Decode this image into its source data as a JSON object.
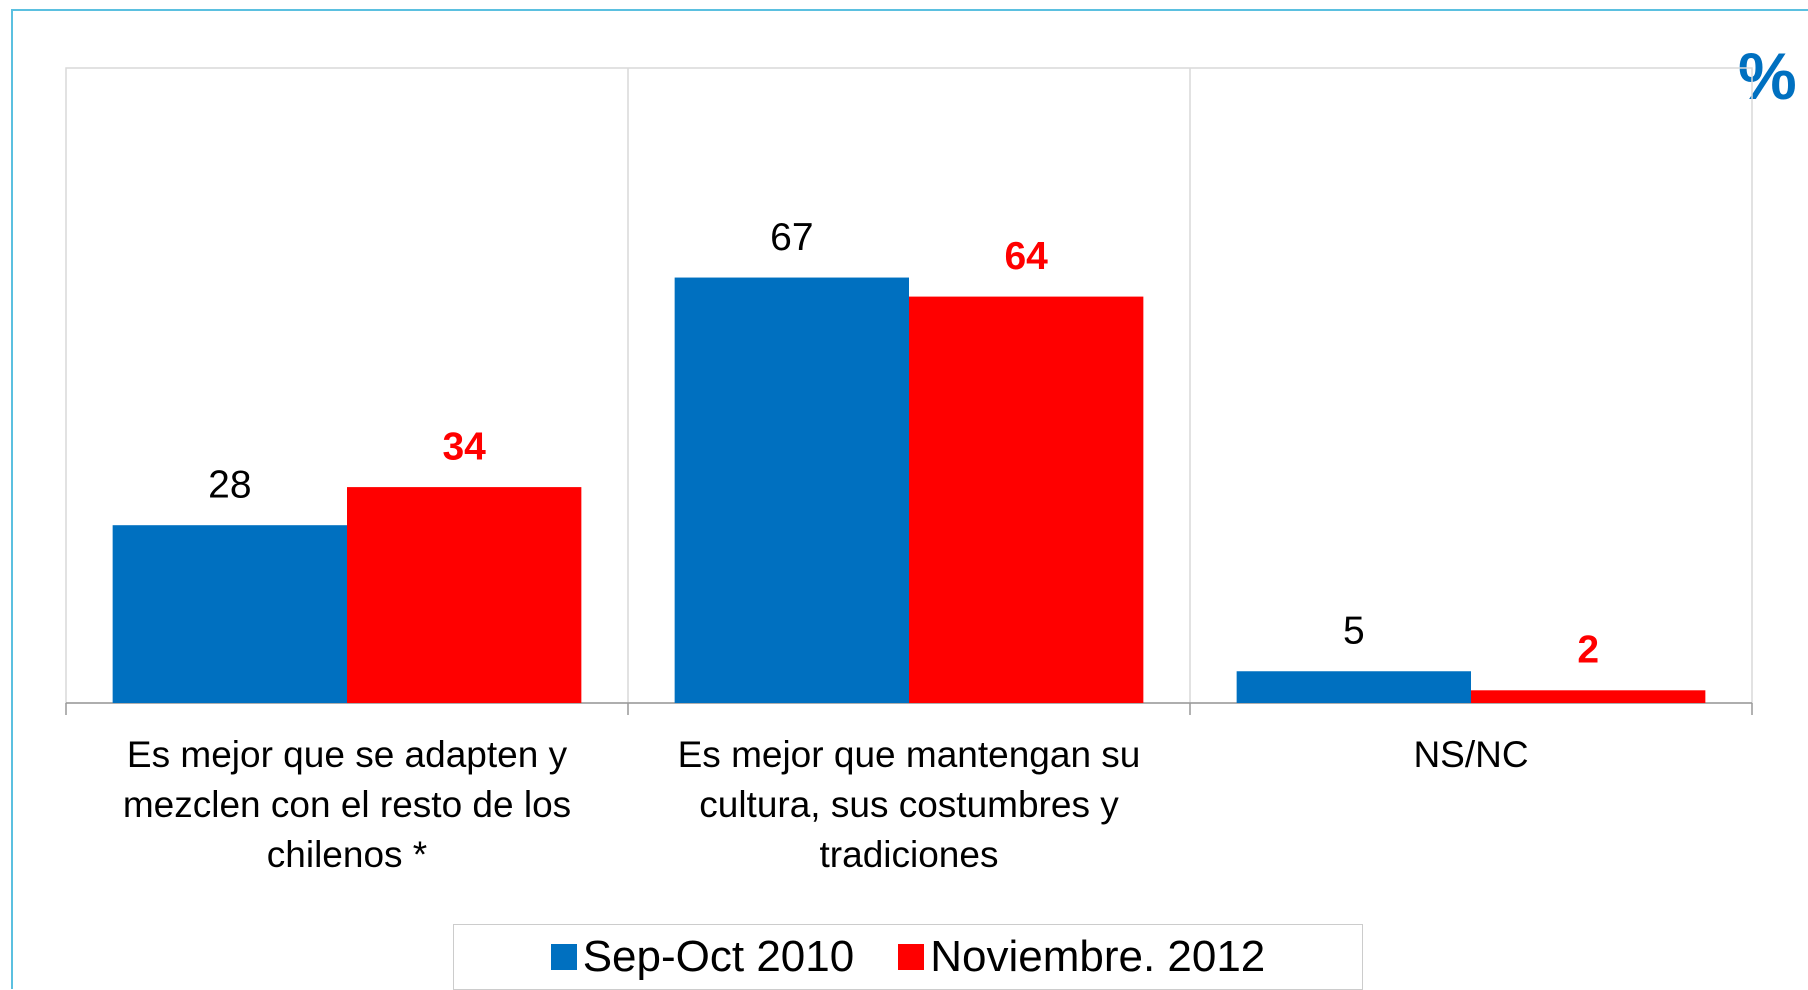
{
  "chart_data": {
    "type": "bar",
    "unit_label": "%",
    "categories": [
      "Es mejor que se adapten y mezclen con el resto de los chilenos *",
      "Es mejor que mantengan su cultura, sus costumbres y tradiciones",
      "NS/NC"
    ],
    "series": [
      {
        "name": "Sep-Oct 2010",
        "color": "#0070c0",
        "values": [
          28,
          67,
          5
        ]
      },
      {
        "name": "Noviembre. 2012",
        "color": "#ff0000",
        "values": [
          34,
          64,
          2
        ]
      }
    ],
    "ylim": [
      0,
      100
    ],
    "grid": true,
    "legend": "bottom"
  }
}
